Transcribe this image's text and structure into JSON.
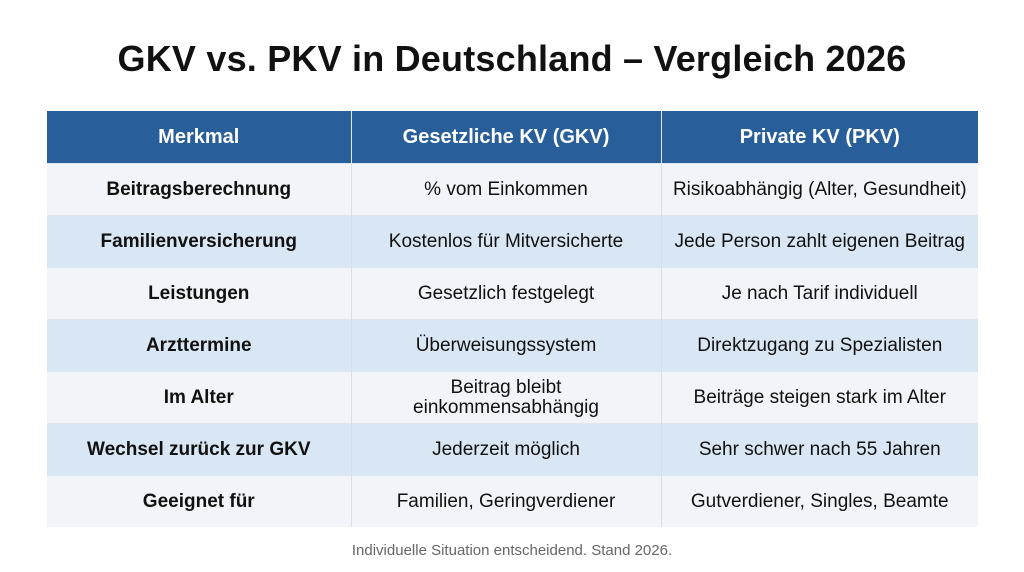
{
  "title": "GKV vs. PKV in Deutschland – Vergleich 2026",
  "table": {
    "headers": [
      "Merkmal",
      "Gesetzliche KV (GKV)",
      "Private KV (PKV)"
    ],
    "rows": [
      [
        "Beitragsberechnung",
        "% vom Einkommen",
        "Risikoabhängig (Alter, Gesundheit)"
      ],
      [
        "Familienversicherung",
        "Kostenlos für Mitversicherte",
        "Jede Person zahlt eigenen Beitrag"
      ],
      [
        "Leistungen",
        "Gesetzlich festgelegt",
        "Je nach Tarif individuell"
      ],
      [
        "Arzttermine",
        "Überweisungssystem",
        "Direktzugang zu Spezialisten"
      ],
      [
        "Im Alter",
        "Beitrag bleibt einkommensabhängig",
        "Beiträge steigen stark im Alter"
      ],
      [
        "Wechsel zurück zur GKV",
        "Jederzeit möglich",
        "Sehr schwer nach 55 Jahren"
      ],
      [
        "Geeignet für",
        "Familien, Geringverdiener",
        "Gutverdiener, Singles, Beamte"
      ]
    ]
  },
  "footnote": "Individuelle Situation entscheidend. Stand 2026.",
  "colors": {
    "header_bg": "#285f9a",
    "row_light": "#f1f5fa",
    "row_blue": "#d9e6f4"
  }
}
